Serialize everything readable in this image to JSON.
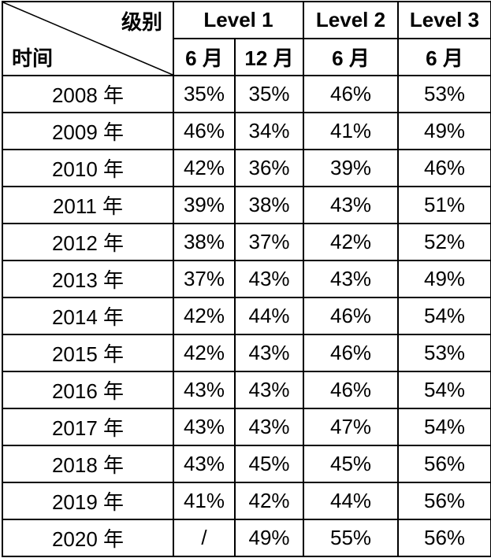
{
  "table": {
    "corner": {
      "top_right_label": "级别",
      "bottom_left_label": "时间"
    },
    "level_headers": [
      "Level 1",
      "Level 2",
      "Level 3"
    ],
    "month_headers": [
      "6 月",
      "12 月",
      "6 月",
      "6 月"
    ],
    "rows": [
      {
        "year": "2008 年",
        "values": [
          "35%",
          "35%",
          "46%",
          "53%"
        ]
      },
      {
        "year": "2009 年",
        "values": [
          "46%",
          "34%",
          "41%",
          "49%"
        ]
      },
      {
        "year": "2010 年",
        "values": [
          "42%",
          "36%",
          "39%",
          "46%"
        ]
      },
      {
        "year": "2011 年",
        "values": [
          "39%",
          "38%",
          "43%",
          "51%"
        ]
      },
      {
        "year": "2012 年",
        "values": [
          "38%",
          "37%",
          "42%",
          "52%"
        ]
      },
      {
        "year": "2013 年",
        "values": [
          "37%",
          "43%",
          "43%",
          "49%"
        ]
      },
      {
        "year": "2014 年",
        "values": [
          "42%",
          "44%",
          "46%",
          "54%"
        ]
      },
      {
        "year": "2015 年",
        "values": [
          "42%",
          "43%",
          "46%",
          "53%"
        ]
      },
      {
        "year": "2016 年",
        "values": [
          "43%",
          "43%",
          "46%",
          "54%"
        ]
      },
      {
        "year": "2017 年",
        "values": [
          "43%",
          "43%",
          "47%",
          "54%"
        ]
      },
      {
        "year": "2018 年",
        "values": [
          "43%",
          "45%",
          "45%",
          "56%"
        ]
      },
      {
        "year": "2019 年",
        "values": [
          "41%",
          "42%",
          "44%",
          "56%"
        ]
      },
      {
        "year": "2020 年",
        "values": [
          "/",
          "49%",
          "55%",
          "56%"
        ]
      }
    ],
    "colors": {
      "border": "#000000",
      "text": "#000000",
      "background": "#ffffff"
    }
  }
}
